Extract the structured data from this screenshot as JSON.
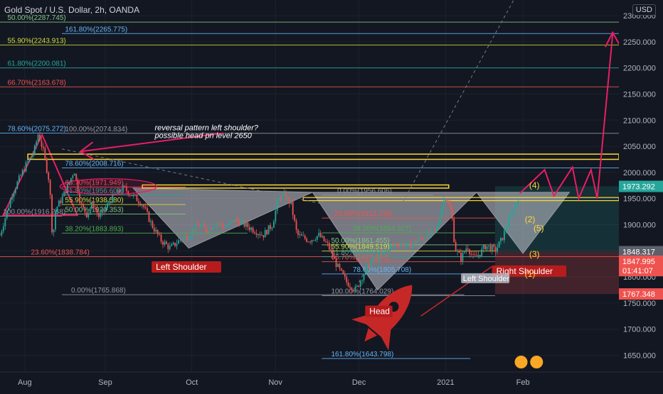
{
  "title": "Gold Spot / U.S. Dollar, 2h, OANDA",
  "currency": "USD",
  "colors": {
    "background": "#131722",
    "grid": "#1e222d",
    "candle_up": "#26a69a",
    "candle_down": "#ef5350",
    "pattern": "#e91e63"
  },
  "chart_data": {
    "type": "candlestick",
    "ylim": [
      1618,
      2330
    ],
    "y_ticks": [
      {
        "value": 2300,
        "label": "2300.000"
      },
      {
        "value": 2250,
        "label": "2250.000"
      },
      {
        "value": 2200,
        "label": "2200.000"
      },
      {
        "value": 2150,
        "label": "2150.000"
      },
      {
        "value": 2100,
        "label": "2100.000"
      },
      {
        "value": 2050,
        "label": "2050.000"
      },
      {
        "value": 2000,
        "label": "2000.000"
      },
      {
        "value": 1950,
        "label": "1950.000"
      },
      {
        "value": 1900,
        "label": "1900.000"
      },
      {
        "value": 1850,
        "label": "1850.000"
      },
      {
        "value": 1800,
        "label": "1800.000"
      },
      {
        "value": 1750,
        "label": "1750.000"
      },
      {
        "value": 1700,
        "label": "1700.000"
      },
      {
        "value": 1650,
        "label": "1650.000"
      }
    ],
    "x_ticks": [
      {
        "label": "Aug",
        "t": 0.04
      },
      {
        "label": "Sep",
        "t": 0.17
      },
      {
        "label": "Oct",
        "t": 0.31
      },
      {
        "label": "Nov",
        "t": 0.445
      },
      {
        "label": "Dec",
        "t": 0.58
      },
      {
        "label": "2021",
        "t": 0.72
      },
      {
        "label": "Feb",
        "t": 0.845
      }
    ],
    "price_path": [
      [
        0.0,
        1880
      ],
      [
        0.02,
        1960
      ],
      [
        0.04,
        2010
      ],
      [
        0.055,
        2040
      ],
      [
        0.062,
        2075
      ],
      [
        0.07,
        2040
      ],
      [
        0.08,
        1980
      ],
      [
        0.085,
        1870
      ],
      [
        0.09,
        1930
      ],
      [
        0.1,
        1950
      ],
      [
        0.11,
        1975
      ],
      [
        0.12,
        2005
      ],
      [
        0.13,
        1940
      ],
      [
        0.14,
        1920
      ],
      [
        0.15,
        1940
      ],
      [
        0.16,
        1915
      ],
      [
        0.17,
        1930
      ],
      [
        0.18,
        1950
      ],
      [
        0.19,
        1960
      ],
      [
        0.2,
        1970
      ],
      [
        0.215,
        1955
      ],
      [
        0.23,
        1940
      ],
      [
        0.245,
        1900
      ],
      [
        0.26,
        1870
      ],
      [
        0.275,
        1855
      ],
      [
        0.29,
        1870
      ],
      [
        0.305,
        1880
      ],
      [
        0.32,
        1900
      ],
      [
        0.335,
        1890
      ],
      [
        0.35,
        1905
      ],
      [
        0.365,
        1895
      ],
      [
        0.38,
        1910
      ],
      [
        0.395,
        1900
      ],
      [
        0.41,
        1890
      ],
      [
        0.425,
        1880
      ],
      [
        0.44,
        1900
      ],
      [
        0.45,
        1950
      ],
      [
        0.46,
        1955
      ],
      [
        0.47,
        1940
      ],
      [
        0.48,
        1880
      ],
      [
        0.5,
        1870
      ],
      [
        0.515,
        1880
      ],
      [
        0.53,
        1860
      ],
      [
        0.545,
        1820
      ],
      [
        0.56,
        1790
      ],
      [
        0.575,
        1775
      ],
      [
        0.585,
        1800
      ],
      [
        0.6,
        1830
      ],
      [
        0.615,
        1840
      ],
      [
        0.63,
        1855
      ],
      [
        0.645,
        1865
      ],
      [
        0.66,
        1860
      ],
      [
        0.675,
        1870
      ],
      [
        0.69,
        1880
      ],
      [
        0.705,
        1890
      ],
      [
        0.715,
        1940
      ],
      [
        0.72,
        1955
      ],
      [
        0.73,
        1920
      ],
      [
        0.735,
        1855
      ],
      [
        0.745,
        1835
      ],
      [
        0.755,
        1860
      ],
      [
        0.765,
        1835
      ],
      [
        0.775,
        1845
      ],
      [
        0.785,
        1860
      ],
      [
        0.8,
        1850
      ],
      [
        0.81,
        1870
      ],
      [
        0.82,
        1900
      ],
      [
        0.83,
        1930
      ],
      [
        0.84,
        1960
      ]
    ],
    "price_tags": [
      {
        "value": 1973.292,
        "label": "1973.292",
        "color": "#26a69a"
      },
      {
        "value": 1848.317,
        "label": "1848.317",
        "color": "#5d606b"
      },
      {
        "value": 1830,
        "label": "1847.995",
        "color": "#ef5350"
      },
      {
        "value": 1812,
        "label": "01:41:07",
        "color": "#ef5350"
      },
      {
        "value": 1767.348,
        "label": "1767.348",
        "color": "#ef5350"
      }
    ]
  },
  "fib_levels": [
    {
      "label": "50.00%(2287.745)",
      "y": 2287.745,
      "color": "#81c784",
      "x1": 0.0,
      "x2": 1.0,
      "lx": 0.012
    },
    {
      "label": "161.80%(2265.775)",
      "y": 2265.775,
      "color": "#64b5f6",
      "x1": 0.1,
      "x2": 1.0,
      "lx": 0.105
    },
    {
      "label": "55.90%(2243.913)",
      "y": 2243.913,
      "color": "#cddc39",
      "x1": 0.0,
      "x2": 1.0,
      "lx": 0.012
    },
    {
      "label": "61.80%(2200.081)",
      "y": 2200.081,
      "color": "#26a69a",
      "x1": 0.0,
      "x2": 1.0,
      "lx": 0.012
    },
    {
      "label": "66.70%(2163.678)",
      "y": 2163.678,
      "color": "#ef5350",
      "x1": 0.0,
      "x2": 1.0,
      "lx": 0.012
    },
    {
      "label": "78.60%(2075.272)",
      "y": 2075.272,
      "color": "#64b5f6",
      "x1": 0.0,
      "x2": 0.1,
      "lx": 0.012
    },
    {
      "label": "100.00%(2074.834)",
      "y": 2074.834,
      "color": "#9598a1",
      "x1": 0.1,
      "x2": 1.0,
      "lx": 0.105
    },
    {
      "label": "78.60%(2008.716)",
      "y": 2008.716,
      "color": "#64b5f6",
      "x1": 0.1,
      "x2": 1.0,
      "lx": 0.105
    },
    {
      "label": "66.70%(1971.949)",
      "y": 1971.949,
      "color": "#ef5350",
      "x1": 0.1,
      "x2": 0.3,
      "lx": 0.105
    },
    {
      "label": "61.80%(1956.609)",
      "y": 1956.609,
      "color": "#26a69a",
      "x1": 0.1,
      "x2": 0.3,
      "lx": 0.105
    },
    {
      "label": "55.90%(1938.580)",
      "y": 1938.58,
      "color": "#cddc39",
      "x1": 0.1,
      "x2": 0.3,
      "lx": 0.105
    },
    {
      "label": "50.00%(1920.353)",
      "y": 1920.353,
      "color": "#81c784",
      "x1": 0.1,
      "x2": 0.3,
      "lx": 0.105
    },
    {
      "label": "100.00%(1916.268)",
      "y": 1916.268,
      "color": "#9598a1",
      "x1": 0.0,
      "x2": 0.1,
      "lx": 0.005
    },
    {
      "label": "38.20%(1883.893)",
      "y": 1883.893,
      "color": "#4caf50",
      "x1": 0.1,
      "x2": 0.4,
      "lx": 0.105
    },
    {
      "label": "23.60%(1838.784)",
      "y": 1838.784,
      "color": "#ef5350",
      "x1": 0.0,
      "x2": 1.0,
      "lx": 0.05
    },
    {
      "label": "0.00%(1765.868)",
      "y": 1765.868,
      "color": "#9598a1",
      "x1": 0.1,
      "x2": 0.75,
      "lx": 0.115
    },
    {
      "label": "0.00%(1956.606)",
      "y": 1956.606,
      "color": "#9598a1",
      "x1": 0.52,
      "x2": 0.7,
      "lx": 0.545
    },
    {
      "label": "23.60%(1912.739)",
      "y": 1912.739,
      "color": "#ef5350",
      "x1": 0.52,
      "x2": 0.8,
      "lx": 0.54
    },
    {
      "label": "38.20%(1884.327)",
      "y": 1884.327,
      "color": "#4caf50",
      "x1": 0.52,
      "x2": 0.8,
      "lx": 0.57
    },
    {
      "label": "50.00%(1861.455)",
      "y": 1861.455,
      "color": "#81c784",
      "x1": 0.52,
      "x2": 0.8,
      "lx": 0.535
    },
    {
      "label": "55.90%(1849.519)",
      "y": 1849.519,
      "color": "#cddc39",
      "x1": 0.52,
      "x2": 0.8,
      "lx": 0.535
    },
    {
      "label": "61.80%(1838.583)",
      "y": 1838.583,
      "color": "#26a69a",
      "x1": 0.52,
      "x2": 0.8,
      "lx": 0.535
    },
    {
      "label": "66.70%(1829.182)",
      "y": 1829.182,
      "color": "#ef5350",
      "x1": 0.52,
      "x2": 0.8,
      "lx": 0.535
    },
    {
      "label": "78.60%(1805.708)",
      "y": 1805.708,
      "color": "#64b5f6",
      "x1": 0.52,
      "x2": 0.8,
      "lx": 0.57
    },
    {
      "label": "100.00%(1764.029)",
      "y": 1764.029,
      "color": "#9598a1",
      "x1": 0.52,
      "x2": 0.8,
      "lx": 0.535
    },
    {
      "label": "161.80%(1643.798)",
      "y": 1643.798,
      "color": "#64b5f6",
      "x1": 0.52,
      "x2": 0.76,
      "lx": 0.535
    }
  ],
  "annotations": {
    "note_line1": "reversal pattern left shoulder?",
    "note_line2": "possible head pn level 2650",
    "left_shoulder": "Left Shoulder",
    "head": "Head",
    "right_shoulder": "Right Shoulder",
    "left_shoulder_2": "Left Shoulder",
    "wave_labels": [
      "(4)",
      "(2)",
      "(5)",
      "(3)",
      "(1)"
    ]
  }
}
